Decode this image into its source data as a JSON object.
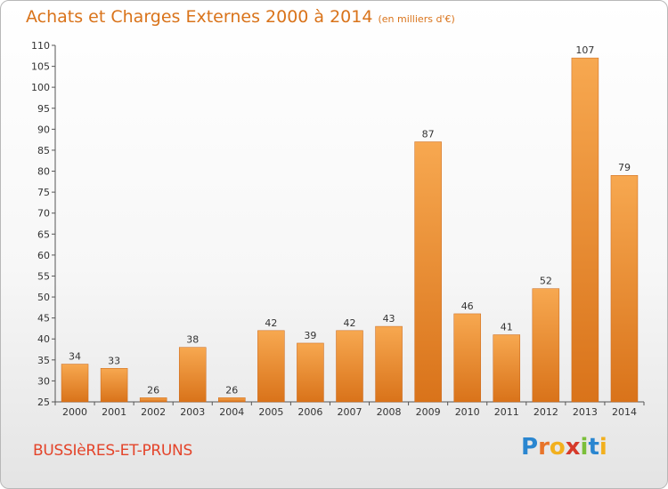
{
  "chart_data": {
    "type": "bar",
    "title": "Achats et Charges Externes 2000 à 2014",
    "unit": "(en milliers d'€)",
    "categories": [
      "2000",
      "2001",
      "2002",
      "2003",
      "2004",
      "2005",
      "2006",
      "2007",
      "2008",
      "2009",
      "2010",
      "2011",
      "2012",
      "2013",
      "2014"
    ],
    "values": [
      34,
      33,
      26,
      38,
      26,
      42,
      39,
      42,
      43,
      87,
      46,
      41,
      52,
      107,
      79
    ],
    "ylim": [
      25,
      110
    ],
    "yticks": [
      25,
      30,
      35,
      40,
      45,
      50,
      55,
      60,
      65,
      70,
      75,
      80,
      85,
      90,
      95,
      100,
      105,
      110
    ],
    "grid": false,
    "bar_color": "#f0922e"
  },
  "commune": "BUSSIèRES-ET-PRUNS",
  "brand": {
    "letters": [
      "P",
      "r",
      "o",
      "x",
      "i",
      "t",
      "i"
    ],
    "colors": [
      "#2a86d0",
      "#e8742a",
      "#f2b01e",
      "#d63a2a",
      "#7bbf3a",
      "#2a86d0",
      "#f2b01e"
    ]
  }
}
